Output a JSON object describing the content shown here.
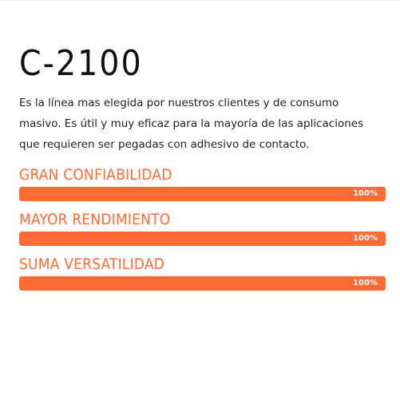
{
  "product": {
    "title": "C-2100",
    "description": "Es la línea mas elegida por nuestros clientes y de consumo masivo. Es útil y muy eficaz para la mayoría de las aplicaciones que requieren ser pegadas con adhesivo de contacto."
  },
  "skills": [
    {
      "label": "GRAN CONFIABILIDAD",
      "percent_label": "100%",
      "value": 100
    },
    {
      "label": "MAYOR RENDIMIENTO",
      "percent_label": "100%",
      "value": 100
    },
    {
      "label": "SUMA VERSATILIDAD",
      "percent_label": "100%",
      "value": 100
    }
  ],
  "colors": {
    "accent": "#ff6b35",
    "text": "#222222",
    "title": "#111111",
    "track": "#f0f0f0"
  }
}
